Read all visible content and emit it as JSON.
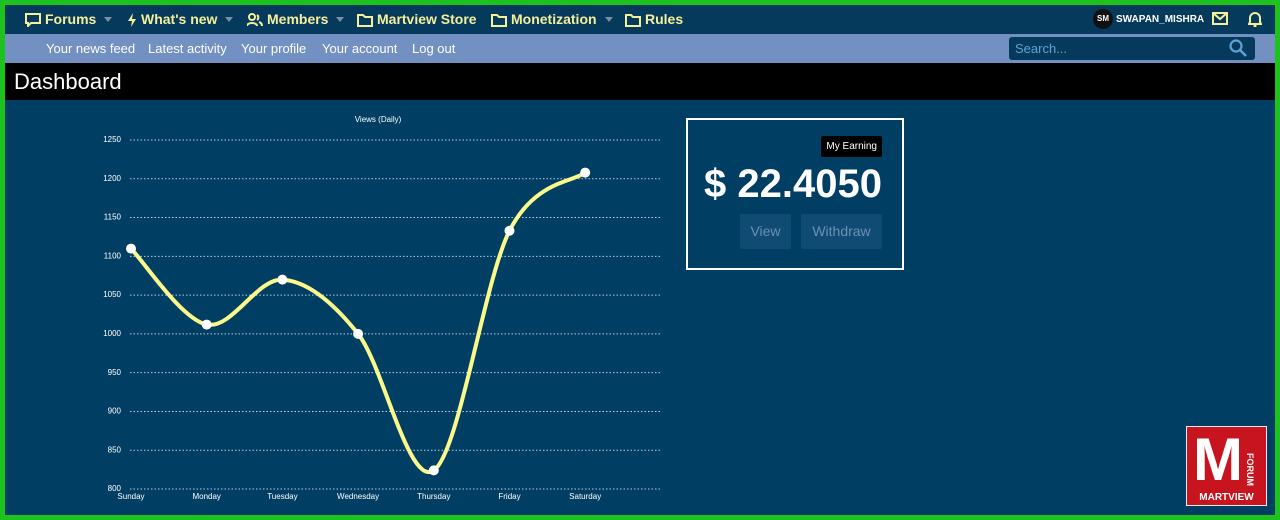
{
  "nav": {
    "items": [
      "Forums",
      "What's new",
      "Members",
      "Martview Store",
      "Monetization",
      "Rules"
    ],
    "avatar": "SM",
    "username": "SWAPAN_MISHRA"
  },
  "subnav": {
    "items": [
      "Your news feed",
      "Latest activity",
      "Your profile",
      "Your account",
      "Log out"
    ],
    "search_placeholder": "Search..."
  },
  "page_title": "Dashboard",
  "chart_data": {
    "type": "line",
    "title": "Views (Daily)",
    "categories": [
      "Sunday",
      "Monday",
      "Tuesday",
      "Wednesday",
      "Thursday",
      "Friday",
      "Saturday"
    ],
    "values": [
      1110,
      1012,
      1070,
      1000,
      824,
      1133,
      1208
    ],
    "color": "#fbf98a",
    "ylim": [
      800,
      1250
    ],
    "yticks": [
      800,
      850,
      900,
      950,
      1000,
      1050,
      1100,
      1150,
      1200,
      1250
    ],
    "grid": true
  },
  "earning": {
    "label": "My Earning",
    "amount": "$ 22.4050",
    "buttons": [
      "View",
      "Withdraw"
    ]
  },
  "logo": {
    "letter": "M",
    "side": "FORUM",
    "name": "MARTVIEW"
  }
}
